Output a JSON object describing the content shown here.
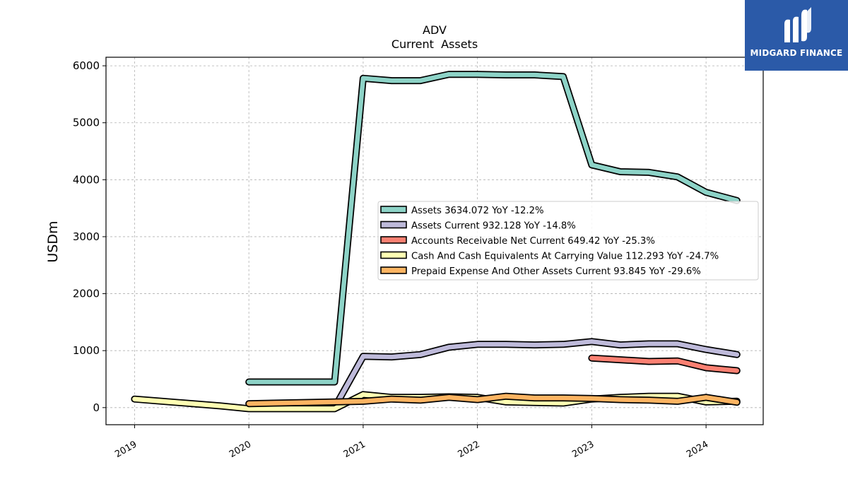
{
  "chart_data": {
    "type": "line",
    "title": "ADV",
    "subtitle": "Current  Assets",
    "xlabel": "",
    "ylabel": "USDm",
    "xlim": [
      2018.75,
      2024.5
    ],
    "ylim": [
      -300,
      6150
    ],
    "x_ticks": [
      2019,
      2020,
      2021,
      2022,
      2023,
      2024
    ],
    "x_tick_labels": [
      "2019",
      "2020",
      "2021",
      "2022",
      "2023",
      "2024"
    ],
    "y_ticks": [
      0,
      1000,
      2000,
      3000,
      4000,
      5000,
      6000
    ],
    "y_tick_labels": [
      "0",
      "1000",
      "2000",
      "3000",
      "4000",
      "5000",
      "6000"
    ],
    "grid": true,
    "legend_position": "center-right",
    "series": [
      {
        "name": "Assets",
        "legend_label": "Assets  3634.072 YoY -12.2%",
        "color": "#8dd3c7",
        "x": [
          2020.0,
          2020.75,
          2021.0,
          2021.25,
          2021.5,
          2021.75,
          2022.0,
          2022.25,
          2022.5,
          2022.75,
          2023.0,
          2023.25,
          2023.5,
          2023.75,
          2024.0,
          2024.27
        ],
        "y": [
          450,
          450,
          5780,
          5740,
          5740,
          5850,
          5850,
          5840,
          5840,
          5810,
          4260,
          4140,
          4130,
          4050,
          3780,
          3634
        ]
      },
      {
        "name": "Assets Current",
        "legend_label": "Assets Current  932.128 YoY -14.8%",
        "color": "#bebada",
        "x": [
          2020.75,
          2021.0,
          2021.25,
          2021.5,
          2021.75,
          2022.0,
          2022.25,
          2022.5,
          2022.75,
          2023.0,
          2023.25,
          2023.5,
          2023.75,
          2024.0,
          2024.27
        ],
        "y": [
          0,
          900,
          890,
          930,
          1060,
          1110,
          1110,
          1100,
          1110,
          1160,
          1100,
          1120,
          1120,
          1020,
          932
        ]
      },
      {
        "name": "Accounts Receivable Net Current",
        "legend_label": "Accounts Receivable Net Current  649.42 YoY -25.3%",
        "color": "#fb8072",
        "x": [
          2023.0,
          2023.25,
          2023.5,
          2023.75,
          2024.0,
          2024.27
        ],
        "y": [
          870,
          840,
          810,
          820,
          700,
          649
        ]
      },
      {
        "name": "Cash And Cash Equivalents At Carrying Value",
        "legend_label": "Cash And Cash Equivalents At Carrying Value  112.293 YoY -24.7%",
        "color": "#ffffb3",
        "x": [
          2019.0,
          2019.75,
          2020.0,
          2020.75,
          2021.0,
          2021.25,
          2021.5,
          2021.75,
          2022.0,
          2022.25,
          2022.5,
          2022.75,
          2023.0,
          2023.25,
          2023.5,
          2023.75,
          2024.0,
          2024.27
        ],
        "y": [
          150,
          30,
          -20,
          -20,
          230,
          180,
          180,
          190,
          180,
          100,
          90,
          80,
          150,
          180,
          200,
          200,
          100,
          112
        ]
      },
      {
        "name": "Prepaid Expense And Other Assets Current",
        "legend_label": "Prepaid Expense And Other Assets Current  93.845 YoY -29.6%",
        "color": "#fdb462",
        "x": [
          2020.0,
          2020.75,
          2021.0,
          2021.25,
          2021.5,
          2021.75,
          2022.0,
          2022.25,
          2022.5,
          2022.75,
          2023.0,
          2023.25,
          2023.5,
          2023.75,
          2024.0,
          2024.27
        ],
        "y": [
          70,
          100,
          110,
          150,
          130,
          180,
          140,
          200,
          170,
          170,
          160,
          140,
          130,
          110,
          180,
          94
        ]
      }
    ]
  },
  "logo": {
    "text": "MIDGARD FINANCE"
  }
}
